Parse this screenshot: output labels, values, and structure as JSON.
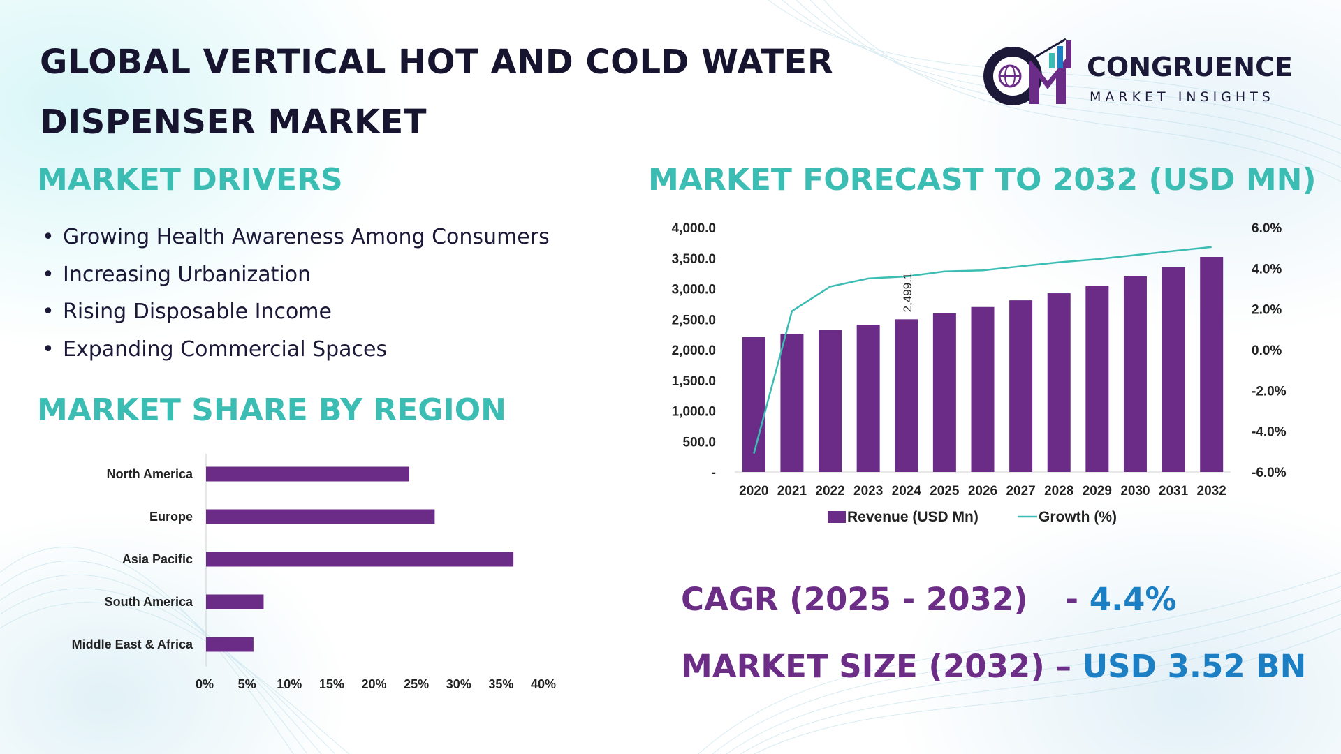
{
  "title": "GLOBAL VERTICAL HOT AND COLD WATER DISPENSER MARKET",
  "logo": {
    "name": "CONGRUENCE",
    "subtitle": "MARKET INSIGHTS",
    "monogram": "CM",
    "icon": "globe-bar-chart-icon"
  },
  "drivers": {
    "heading": "MARKET DRIVERS",
    "items": [
      "Growing Health Awareness Among Consumers",
      "Increasing Urbanization",
      "Rising Disposable Income",
      "Expanding Commercial Spaces"
    ]
  },
  "region": {
    "heading": "MARKET SHARE BY REGION"
  },
  "forecast": {
    "heading": "MARKET FORECAST TO 2032 (USD MN)"
  },
  "kpis": {
    "cagr_label": "CAGR (2025 - 2032)",
    "cagr_dash": "- ",
    "cagr_value": "4.4%",
    "size_label": "MARKET SIZE (2032)",
    "size_dash": "– ",
    "size_value": "USD 3.52 BN"
  },
  "colors": {
    "bar": "#6a2c86",
    "growth_line": "#3bbdb4",
    "heading": "#3bbdb4",
    "kpi_label": "#6b2d86",
    "kpi_value": "#1c7fc4"
  },
  "chart_data": [
    {
      "type": "bar",
      "orientation": "horizontal",
      "categories": [
        "North America",
        "Europe",
        "Asia Pacific",
        "South America",
        "Middle East & Africa"
      ],
      "values": [
        24,
        27,
        36.3,
        6.8,
        5.6
      ],
      "unit": "%",
      "xlim": [
        0,
        40
      ],
      "xticks": [
        "0%",
        "5%",
        "10%",
        "15%",
        "20%",
        "25%",
        "30%",
        "35%",
        "40%"
      ],
      "grid": false
    },
    {
      "type": "bar",
      "title": "",
      "x": [
        "2020",
        "2021",
        "2022",
        "2023",
        "2024",
        "2025",
        "2026",
        "2027",
        "2028",
        "2029",
        "2030",
        "2031",
        "2032"
      ],
      "series": [
        {
          "name": "Revenue (USD Mn)",
          "type": "bar",
          "axis": "left",
          "values": [
            2210,
            2260,
            2330,
            2410,
            2499.1,
            2595,
            2700,
            2810,
            2925,
            3050,
            3200,
            3350,
            3520
          ]
        },
        {
          "name": "Growth (%)",
          "type": "line",
          "axis": "right",
          "values": [
            -5.1,
            1.9,
            3.1,
            3.5,
            3.6,
            3.85,
            3.9,
            4.1,
            4.3,
            4.45,
            4.65,
            4.85,
            5.05
          ]
        }
      ],
      "data_labels": [
        {
          "x": "2024",
          "text": "2,499.1"
        }
      ],
      "y_left": {
        "ylim": [
          0,
          4000
        ],
        "ticks": [
          "-",
          "500.0",
          "1,000.0",
          "1,500.0",
          "2,000.0",
          "2,500.0",
          "3,000.0",
          "3,500.0",
          "4,000.0"
        ]
      },
      "y_right": {
        "ylim": [
          -6,
          6
        ],
        "ticks": [
          "-6.0%",
          "-4.0%",
          "-2.0%",
          "0.0%",
          "2.0%",
          "4.0%",
          "6.0%"
        ]
      },
      "legend": "bottom",
      "grid": false
    }
  ]
}
